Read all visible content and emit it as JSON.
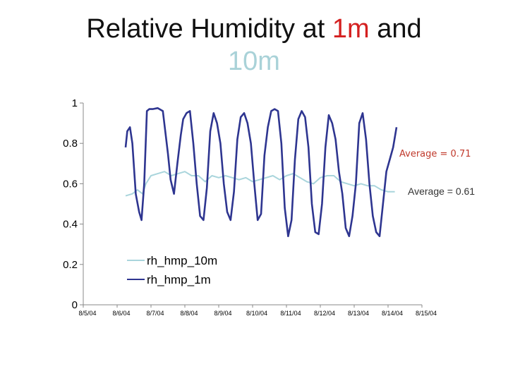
{
  "title": {
    "part1": "Relative Humidity at ",
    "part2": "1m",
    "part3": " and",
    "part4": "10m"
  },
  "colors": {
    "title_text": "#111111",
    "title_1m": "#d42020",
    "title_10m": "#a9d2d8",
    "rh_1m": "#2e3590",
    "rh_10m": "#a9d5dc",
    "avg_1m_label": "#c0392b",
    "avg_10m_label": "#333333",
    "axis": "#888888"
  },
  "chart_data": {
    "type": "line",
    "ylim": [
      0,
      1
    ],
    "y_ticks": [
      "0",
      "0.2",
      "0.4",
      "0.6",
      "0.8",
      "1"
    ],
    "y_tick_values": [
      0,
      0.2,
      0.4,
      0.6,
      0.8,
      1.0
    ],
    "x_tick_labels": [
      "8/5/04",
      "8/6/04",
      "8/7/04",
      "8/8/04",
      "8/9/04",
      "8/10/04",
      "8/11/04",
      "8/12/04",
      "8/13/04",
      "8/14/04",
      "8/15/04"
    ],
    "xlim": [
      0,
      10
    ],
    "grid": false,
    "legend": "center-left",
    "series": [
      {
        "name": "rh_hmp_10m",
        "x": [
          1.25,
          1.45,
          1.6,
          1.75,
          1.85,
          2.0,
          2.2,
          2.4,
          2.6,
          2.8,
          3.0,
          3.2,
          3.4,
          3.6,
          3.8,
          4.0,
          4.2,
          4.4,
          4.6,
          4.8,
          5.0,
          5.2,
          5.4,
          5.6,
          5.8,
          6.0,
          6.2,
          6.4,
          6.6,
          6.8,
          7.0,
          7.2,
          7.4,
          7.6,
          7.8,
          8.0,
          8.2,
          8.4,
          8.6,
          8.8,
          9.0,
          9.2
        ],
        "values": [
          0.54,
          0.55,
          0.57,
          0.55,
          0.6,
          0.64,
          0.65,
          0.66,
          0.64,
          0.65,
          0.66,
          0.64,
          0.64,
          0.61,
          0.64,
          0.63,
          0.64,
          0.63,
          0.62,
          0.63,
          0.61,
          0.62,
          0.63,
          0.64,
          0.62,
          0.64,
          0.65,
          0.63,
          0.61,
          0.6,
          0.63,
          0.64,
          0.64,
          0.61,
          0.6,
          0.59,
          0.6,
          0.59,
          0.59,
          0.57,
          0.56,
          0.56
        ]
      },
      {
        "name": "rh_hmp_1m",
        "x": [
          1.25,
          1.3,
          1.38,
          1.45,
          1.55,
          1.65,
          1.72,
          1.8,
          1.88,
          1.95,
          2.05,
          2.2,
          2.35,
          2.5,
          2.58,
          2.68,
          2.78,
          2.88,
          2.95,
          3.05,
          3.15,
          3.25,
          3.35,
          3.45,
          3.55,
          3.65,
          3.75,
          3.85,
          3.95,
          4.05,
          4.15,
          4.25,
          4.35,
          4.45,
          4.55,
          4.65,
          4.75,
          4.85,
          4.95,
          5.05,
          5.15,
          5.25,
          5.35,
          5.45,
          5.55,
          5.65,
          5.75,
          5.85,
          5.95,
          6.05,
          6.15,
          6.25,
          6.35,
          6.45,
          6.55,
          6.65,
          6.75,
          6.85,
          6.95,
          7.05,
          7.15,
          7.25,
          7.35,
          7.45,
          7.55,
          7.65,
          7.75,
          7.85,
          7.95,
          8.05,
          8.15,
          8.25,
          8.35,
          8.45,
          8.55,
          8.65,
          8.75,
          8.85,
          8.95,
          9.05,
          9.15,
          9.25
        ],
        "values": [
          0.78,
          0.86,
          0.88,
          0.8,
          0.55,
          0.46,
          0.42,
          0.6,
          0.96,
          0.97,
          0.97,
          0.975,
          0.96,
          0.75,
          0.62,
          0.55,
          0.7,
          0.84,
          0.92,
          0.95,
          0.96,
          0.8,
          0.6,
          0.44,
          0.42,
          0.58,
          0.86,
          0.95,
          0.9,
          0.8,
          0.6,
          0.46,
          0.42,
          0.56,
          0.82,
          0.93,
          0.95,
          0.9,
          0.8,
          0.6,
          0.42,
          0.45,
          0.74,
          0.88,
          0.96,
          0.97,
          0.96,
          0.8,
          0.48,
          0.34,
          0.42,
          0.72,
          0.92,
          0.96,
          0.93,
          0.78,
          0.5,
          0.36,
          0.35,
          0.5,
          0.78,
          0.94,
          0.9,
          0.82,
          0.66,
          0.55,
          0.38,
          0.34,
          0.44,
          0.6,
          0.9,
          0.95,
          0.82,
          0.6,
          0.44,
          0.36,
          0.34,
          0.5,
          0.66,
          0.72,
          0.78,
          0.88
        ]
      }
    ],
    "annotations": [
      {
        "text": "Average = 0.71",
        "series": "rh_hmp_1m"
      },
      {
        "text": "Average = 0.61",
        "series": "rh_hmp_10m"
      }
    ]
  }
}
